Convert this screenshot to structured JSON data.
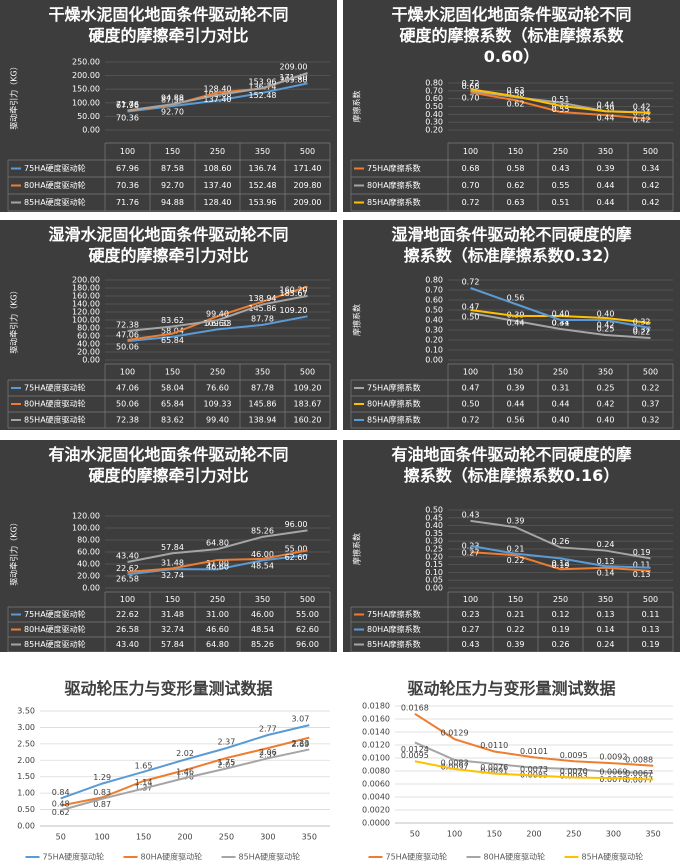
{
  "chart_data": [
    {
      "type": "line",
      "title": "干燥水泥固化地面条件驱动轮不同硬度的摩擦牵引力对比",
      "y_label": "驱动牵引力（KG）",
      "background": "#3d3d3d",
      "grid": true,
      "data_table": true,
      "categories": [
        "100",
        "150",
        "250",
        "350",
        "500"
      ],
      "ylim": [
        0,
        250
      ],
      "yticks": [
        {
          "value": 0,
          "label": "0.00"
        },
        {
          "value": 50,
          "label": "50.00"
        },
        {
          "value": 100,
          "label": "100.00"
        },
        {
          "value": 150,
          "label": "150.00"
        },
        {
          "value": 200,
          "label": "200.00"
        },
        {
          "value": 250,
          "label": "250.00"
        }
      ],
      "series": [
        {
          "name": "75HA硬度驱动轮",
          "color": "#5b9bd5",
          "values": [
            67.96,
            87.58,
            108.6,
            136.74,
            171.4
          ],
          "value_labels": [
            "67.96",
            "87.58",
            "108.60",
            "136.74",
            "171.40"
          ]
        },
        {
          "name": "80HA硬度驱动轮",
          "color": "#ed7d31",
          "values": [
            70.36,
            92.7,
            137.4,
            152.48,
            209.8
          ],
          "value_labels": [
            "70.36",
            "92.70",
            "137.40",
            "152.48",
            "209.80"
          ]
        },
        {
          "name": "85HA硬度驱动轮",
          "color": "#a5a5a5",
          "values": [
            71.76,
            94.88,
            128.4,
            153.96,
            209
          ],
          "value_labels": [
            "71.76",
            "94.88",
            "128.40",
            "153.96",
            "209.00"
          ]
        }
      ]
    },
    {
      "type": "line",
      "title": "干燥水泥固化地面条件驱动轮不同硬度的摩擦系数（标准摩擦系数0.60）",
      "y_label": "摩擦系数",
      "background": "#3d3d3d",
      "grid": true,
      "data_table": true,
      "categories": [
        "100",
        "150",
        "250",
        "350",
        "500"
      ],
      "ylim": [
        0.2,
        0.8
      ],
      "yticks": [
        {
          "value": 0.2,
          "label": "0.20"
        },
        {
          "value": 0.3,
          "label": "0.30"
        },
        {
          "value": 0.4,
          "label": "0.40"
        },
        {
          "value": 0.5,
          "label": "0.50"
        },
        {
          "value": 0.6,
          "label": "0.60"
        },
        {
          "value": 0.7,
          "label": "0.70"
        },
        {
          "value": 0.8,
          "label": "0.80"
        }
      ],
      "series": [
        {
          "name": "75HA摩擦系数",
          "color": "#ed7d31",
          "values": [
            0.68,
            0.58,
            0.43,
            0.39,
            0.34
          ],
          "value_labels": [
            "0.68",
            "0.58",
            "0.43",
            "0.39",
            "0.34"
          ]
        },
        {
          "name": "80HA摩擦系数",
          "color": "#a5a5a5",
          "values": [
            0.7,
            0.62,
            0.55,
            0.44,
            0.42
          ],
          "value_labels": [
            "0.70",
            "0.62",
            "0.55",
            "0.44",
            "0.42"
          ]
        },
        {
          "name": "85HA摩擦系数",
          "color": "#ffc000",
          "values": [
            0.72,
            0.63,
            0.51,
            0.44,
            0.42
          ],
          "value_labels": [
            "0.72",
            "0.63",
            "0.51",
            "0.44",
            "0.42"
          ]
        }
      ]
    },
    {
      "type": "line",
      "title": "湿滑水泥固化地面条件驱动轮不同硬度的摩擦牵引力对比",
      "y_label": "驱动牵引力（KG）",
      "background": "#3d3d3d",
      "grid": true,
      "data_table": true,
      "categories": [
        "100",
        "150",
        "250",
        "350",
        "500"
      ],
      "ylim": [
        0,
        200
      ],
      "yticks": [
        {
          "value": 0,
          "label": "0.00"
        },
        {
          "value": 20,
          "label": "20.00"
        },
        {
          "value": 40,
          "label": "40.00"
        },
        {
          "value": 60,
          "label": "60.00"
        },
        {
          "value": 80,
          "label": "80.00"
        },
        {
          "value": 100,
          "label": "100.00"
        },
        {
          "value": 120,
          "label": "120.00"
        },
        {
          "value": 140,
          "label": "140.00"
        },
        {
          "value": 160,
          "label": "160.00"
        },
        {
          "value": 180,
          "label": "180.00"
        },
        {
          "value": 200,
          "label": "200.00"
        }
      ],
      "series": [
        {
          "name": "75HA硬度驱动轮",
          "color": "#5b9bd5",
          "values": [
            47.06,
            58.04,
            76.6,
            87.78,
            109.2
          ],
          "value_labels": [
            "47.06",
            "58.04",
            "76.60",
            "87.78",
            "109.20"
          ]
        },
        {
          "name": "80HA硬度驱动轮",
          "color": "#ed7d31",
          "values": [
            50.06,
            65.84,
            109.33,
            145.86,
            183.67
          ],
          "value_labels": [
            "50.06",
            "65.84",
            "109.33",
            "145.86",
            "183.67"
          ]
        },
        {
          "name": "85HA硬度驱动轮",
          "color": "#a5a5a5",
          "values": [
            72.38,
            83.62,
            99.4,
            138.94,
            160.2
          ],
          "value_labels": [
            "72.38",
            "83.62",
            "99.40",
            "138.94",
            "160.20"
          ]
        }
      ]
    },
    {
      "type": "line",
      "title": "湿滑地面条件驱动轮不同硬度的摩擦系数（标准摩擦系数0.32）",
      "y_label": "摩擦系数",
      "background": "#3d3d3d",
      "grid": true,
      "data_table": true,
      "categories": [
        "100",
        "150",
        "250",
        "350",
        "500"
      ],
      "ylim": [
        0,
        0.8
      ],
      "yticks": [
        {
          "value": 0,
          "label": "0.00"
        },
        {
          "value": 0.1,
          "label": "0.10"
        },
        {
          "value": 0.2,
          "label": "0.20"
        },
        {
          "value": 0.3,
          "label": "0.30"
        },
        {
          "value": 0.4,
          "label": "0.40"
        },
        {
          "value": 0.5,
          "label": "0.50"
        },
        {
          "value": 0.6,
          "label": "0.60"
        },
        {
          "value": 0.7,
          "label": "0.70"
        },
        {
          "value": 0.8,
          "label": "0.80"
        }
      ],
      "series": [
        {
          "name": "75HA摩擦系数",
          "color": "#a5a5a5",
          "values": [
            0.47,
            0.39,
            0.31,
            0.25,
            0.22
          ],
          "value_labels": [
            "0.47",
            "0.39",
            "0.31",
            "0.25",
            "0.22"
          ]
        },
        {
          "name": "80HA摩擦系数",
          "color": "#ffc000",
          "values": [
            0.5,
            0.44,
            0.44,
            0.42,
            0.37
          ],
          "value_labels": [
            "0.50",
            "0.44",
            "0.44",
            "0.42",
            "0.37"
          ]
        },
        {
          "name": "85HA摩擦系数",
          "color": "#5b9bd5",
          "values": [
            0.72,
            0.56,
            0.4,
            0.4,
            0.32
          ],
          "value_labels": [
            "0.72",
            "0.56",
            "0.40",
            "0.40",
            "0.32"
          ]
        }
      ]
    },
    {
      "type": "line",
      "title": "有油水泥固化地面条件驱动轮不同硬度的摩擦牵引力对比",
      "y_label": "驱动牵引力（KG）",
      "background": "#3d3d3d",
      "grid": true,
      "data_table": true,
      "categories": [
        "100",
        "150",
        "250",
        "350",
        "500"
      ],
      "ylim": [
        0,
        120
      ],
      "yticks": [
        {
          "value": 0,
          "label": "0.00"
        },
        {
          "value": 20,
          "label": "20.00"
        },
        {
          "value": 40,
          "label": "40.00"
        },
        {
          "value": 60,
          "label": "60.00"
        },
        {
          "value": 80,
          "label": "80.00"
        },
        {
          "value": 100,
          "label": "100.00"
        },
        {
          "value": 120,
          "label": "120.00"
        }
      ],
      "series": [
        {
          "name": "75HA硬度驱动轮",
          "color": "#5b9bd5",
          "values": [
            22.62,
            31.48,
            31,
            46,
            55
          ],
          "value_labels": [
            "22.62",
            "31.48",
            "31.00",
            "46.00",
            "55.00"
          ]
        },
        {
          "name": "80HA硬度驱动轮",
          "color": "#ed7d31",
          "values": [
            26.58,
            32.74,
            46.6,
            48.54,
            62.6
          ],
          "value_labels": [
            "26.58",
            "32.74",
            "46.60",
            "48.54",
            "62.60"
          ]
        },
        {
          "name": "85HA硬度驱动轮",
          "color": "#a5a5a5",
          "values": [
            43.4,
            57.84,
            64.8,
            85.26,
            96
          ],
          "value_labels": [
            "43.40",
            "57.84",
            "64.80",
            "85.26",
            "96.00"
          ]
        }
      ]
    },
    {
      "type": "line",
      "title": "有油地面条件驱动轮不同硬度的摩擦系数（标准摩擦系数0.16）",
      "y_label": "摩擦系数",
      "background": "#3d3d3d",
      "grid": true,
      "data_table": true,
      "categories": [
        "100",
        "150",
        "250",
        "350",
        "500"
      ],
      "ylim": [
        0,
        0.5
      ],
      "yticks": [
        {
          "value": 0,
          "label": "0.00"
        },
        {
          "value": 0.05,
          "label": "0.05"
        },
        {
          "value": 0.1,
          "label": "0.10"
        },
        {
          "value": 0.15,
          "label": "0.15"
        },
        {
          "value": 0.2,
          "label": "0.20"
        },
        {
          "value": 0.25,
          "label": "0.25"
        },
        {
          "value": 0.3,
          "label": "0.30"
        },
        {
          "value": 0.35,
          "label": "0.35"
        },
        {
          "value": 0.4,
          "label": "0.40"
        },
        {
          "value": 0.45,
          "label": "0.45"
        },
        {
          "value": 0.5,
          "label": "0.50"
        }
      ],
      "series": [
        {
          "name": "75HA摩擦系数",
          "color": "#ed7d31",
          "values": [
            0.23,
            0.21,
            0.12,
            0.13,
            0.11
          ],
          "value_labels": [
            "0.23",
            "0.21",
            "0.12",
            "0.13",
            "0.11"
          ]
        },
        {
          "name": "80HA摩擦系数",
          "color": "#5b9bd5",
          "values": [
            0.27,
            0.22,
            0.19,
            0.14,
            0.13
          ],
          "value_labels": [
            "0.27",
            "0.22",
            "0.19",
            "0.14",
            "0.13"
          ]
        },
        {
          "name": "85HA摩擦系数",
          "color": "#a5a5a5",
          "values": [
            0.43,
            0.39,
            0.26,
            0.24,
            0.19
          ],
          "value_labels": [
            "0.43",
            "0.39",
            "0.26",
            "0.24",
            "0.19"
          ]
        }
      ]
    },
    {
      "type": "line",
      "title": "驱动轮压力与变形量测试数据",
      "background": "#ffffff",
      "grid": true,
      "legend": "bottom",
      "categories": [
        "50",
        "100",
        "150",
        "200",
        "250",
        "300",
        "350"
      ],
      "ylim": [
        0,
        3.5
      ],
      "yticks": [
        {
          "value": 0,
          "label": "0.00"
        },
        {
          "value": 0.5,
          "label": "0.50"
        },
        {
          "value": 1,
          "label": "1.00"
        },
        {
          "value": 1.5,
          "label": "1.50"
        },
        {
          "value": 2,
          "label": "2.00"
        },
        {
          "value": 2.5,
          "label": "2.50"
        },
        {
          "value": 3,
          "label": "3.00"
        },
        {
          "value": 3.5,
          "label": "3.50"
        }
      ],
      "series": [
        {
          "name": "75HA硬度驱动轮",
          "color": "#5b9bd5",
          "values": [
            0.84,
            1.29,
            1.65,
            2.02,
            2.37,
            2.77,
            3.07
          ],
          "value_labels": [
            "0.84",
            "1.29",
            "1.65",
            "2.02",
            "2.37",
            "2.77",
            "3.07"
          ]
        },
        {
          "name": "80HA硬度驱动轮",
          "color": "#ed7d31",
          "values": [
            0.62,
            0.87,
            1.37,
            1.7,
            2.07,
            2.37,
            2.69
          ],
          "value_labels": [
            "0.62",
            "0.87",
            "1.37",
            "1.70",
            "2.07",
            "2.37",
            "2.69"
          ]
        },
        {
          "name": "85HA硬度驱动轮",
          "color": "#a5a5a5",
          "values": [
            0.48,
            0.83,
            1.14,
            1.46,
            1.75,
            2.06,
            2.33
          ],
          "value_labels": [
            "0.48",
            "0.83",
            "1.14",
            "1.46",
            "1.75",
            "2.06",
            "2.33"
          ]
        }
      ]
    },
    {
      "type": "line",
      "title": "驱动轮压力与变形量测试数据",
      "background": "#ffffff",
      "grid": true,
      "legend": "bottom",
      "categories": [
        "50",
        "100",
        "150",
        "200",
        "250",
        "300",
        "350"
      ],
      "ylim": [
        0,
        0.018
      ],
      "yticks": [
        {
          "value": 0,
          "label": "0.0000"
        },
        {
          "value": 0.002,
          "label": "0.0020"
        },
        {
          "value": 0.004,
          "label": "0.0040"
        },
        {
          "value": 0.006,
          "label": "0.0060"
        },
        {
          "value": 0.008,
          "label": "0.0080"
        },
        {
          "value": 0.01,
          "label": "0.0100"
        },
        {
          "value": 0.012,
          "label": "0.0120"
        },
        {
          "value": 0.014,
          "label": "0.0140"
        },
        {
          "value": 0.016,
          "label": "0.0160"
        },
        {
          "value": 0.018,
          "label": "0.0180"
        }
      ],
      "series": [
        {
          "name": "75HA硬度驱动轮",
          "color": "#ed7d31",
          "values": [
            0.0168,
            0.0129,
            0.011,
            0.0101,
            0.0095,
            0.0092,
            0.0088
          ],
          "value_labels": [
            "0.0168",
            "0.0129",
            "0.0110",
            "0.0101",
            "0.0095",
            "0.0092",
            "0.0088"
          ]
        },
        {
          "name": "80HA硬度驱动轮",
          "color": "#a5a5a5",
          "values": [
            0.0124,
            0.0097,
            0.0091,
            0.0085,
            0.0083,
            0.0078,
            0.0077
          ],
          "value_labels": [
            "0.0124",
            "0.0097",
            "0.0091",
            "0.0085",
            "0.0083",
            "0.0078",
            "0.0077"
          ]
        },
        {
          "name": "85HA硬度驱动轮",
          "color": "#ffc000",
          "values": [
            0.0095,
            0.0083,
            0.0076,
            0.0073,
            0.007,
            0.0069,
            0.0067
          ],
          "value_labels": [
            "0.0095",
            "0.0083",
            "0.0076",
            "0.0073",
            "0.0070",
            "0.0069",
            "0.0067"
          ]
        }
      ]
    }
  ]
}
